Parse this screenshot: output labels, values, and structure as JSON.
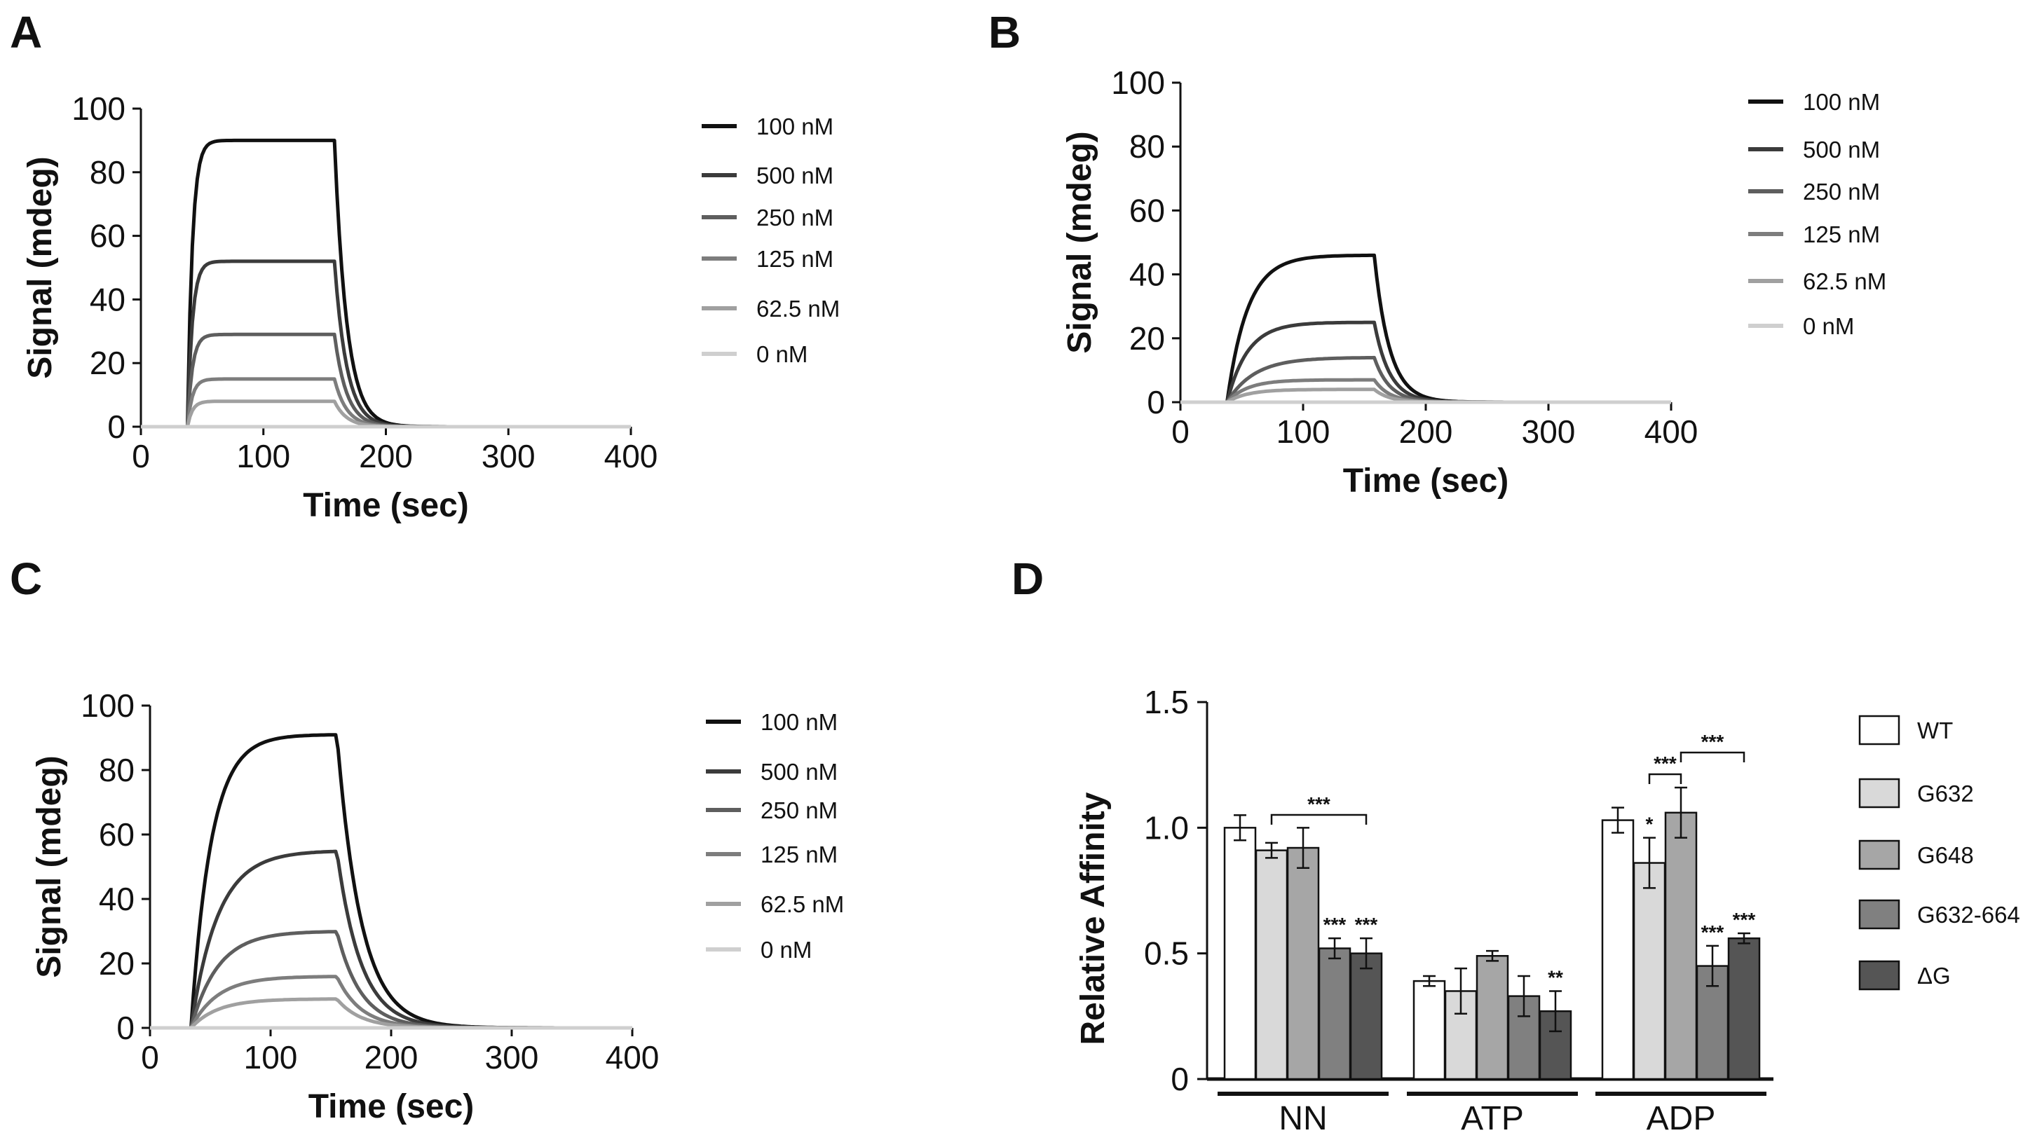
{
  "chart_data": [
    {
      "panel": "A",
      "type": "line",
      "xlabel": "Time (sec)",
      "ylabel": "Signal  (mdeg)",
      "xlim": [
        0,
        400
      ],
      "ylim": [
        0,
        100
      ],
      "xticks": [
        "0",
        "100",
        "200",
        "300",
        "400"
      ],
      "yticks": [
        "0",
        "20",
        "40",
        "60",
        "80",
        "100"
      ],
      "legend_position": "right",
      "association_start": 38,
      "dissociation_start": 158,
      "series": [
        {
          "name": "100 nM",
          "plateau": 90,
          "color": "#111111",
          "k_on": 0.25,
          "k_off": 0.1
        },
        {
          "name": "500 nM",
          "plateau": 52,
          "color": "#3b3b3b",
          "k_on": 0.25,
          "k_off": 0.1
        },
        {
          "name": "250 nM",
          "plateau": 29,
          "color": "#5e5e5e",
          "k_on": 0.25,
          "k_off": 0.1
        },
        {
          "name": "125 nM",
          "plateau": 15,
          "color": "#7d7d7d",
          "k_on": 0.25,
          "k_off": 0.1
        },
        {
          "name": "62.5 nM",
          "plateau": 8,
          "color": "#a0a0a0",
          "k_on": 0.25,
          "k_off": 0.1
        },
        {
          "name": "0 nM",
          "plateau": 0,
          "color": "#cfcfcf",
          "k_on": 0.25,
          "k_off": 0.1
        }
      ]
    },
    {
      "panel": "B",
      "type": "line",
      "xlabel": "Time (sec)",
      "ylabel": "Signal  (mdeg)",
      "xlim": [
        0,
        400
      ],
      "ylim": [
        0,
        100
      ],
      "xticks": [
        "0",
        "100",
        "200",
        "300",
        "400"
      ],
      "yticks": [
        "0",
        "20",
        "40",
        "60",
        "80",
        "100"
      ],
      "legend_position": "right",
      "association_start": 38,
      "dissociation_start": 158,
      "series": [
        {
          "name": "100 nM",
          "plateau": 46,
          "color": "#111111",
          "k_on": 0.06,
          "k_off": 0.08
        },
        {
          "name": "500 nM",
          "plateau": 25,
          "color": "#3b3b3b",
          "k_on": 0.06,
          "k_off": 0.08
        },
        {
          "name": "250 nM",
          "plateau": 14,
          "color": "#5e5e5e",
          "k_on": 0.045,
          "k_off": 0.08
        },
        {
          "name": "125 nM",
          "plateau": 7,
          "color": "#7d7d7d",
          "k_on": 0.06,
          "k_off": 0.08
        },
        {
          "name": "62.5 nM",
          "plateau": 4,
          "color": "#a0a0a0",
          "k_on": 0.06,
          "k_off": 0.08
        },
        {
          "name": "0 nM",
          "plateau": 0,
          "color": "#cfcfcf",
          "k_on": 0.06,
          "k_off": 0.08
        }
      ]
    },
    {
      "panel": "C",
      "type": "line",
      "xlabel": "Time (sec)",
      "ylabel": "Signal  (mdeg)",
      "xlim": [
        0,
        400
      ],
      "ylim": [
        0,
        100
      ],
      "xticks": [
        "0",
        "100",
        "200",
        "300",
        "400"
      ],
      "yticks": [
        "0",
        "20",
        "40",
        "60",
        "80",
        "100"
      ],
      "legend_position": "right",
      "association_start": 34,
      "dissociation_start": 155,
      "series": [
        {
          "name": "100 nM",
          "plateau": 91,
          "color": "#111111",
          "k_on": 0.06,
          "k_off": 0.05
        },
        {
          "name": "500 nM",
          "plateau": 55,
          "color": "#3b3b3b",
          "k_on": 0.045,
          "k_off": 0.05
        },
        {
          "name": "250 nM",
          "plateau": 30,
          "color": "#5e5e5e",
          "k_on": 0.045,
          "k_off": 0.05
        },
        {
          "name": "125 nM",
          "plateau": 16,
          "color": "#7d7d7d",
          "k_on": 0.045,
          "k_off": 0.05
        },
        {
          "name": "62.5 nM",
          "plateau": 9,
          "color": "#a0a0a0",
          "k_on": 0.045,
          "k_off": 0.05
        },
        {
          "name": "0 nM",
          "plateau": 0,
          "color": "#cfcfcf",
          "k_on": 0.045,
          "k_off": 0.05
        }
      ]
    },
    {
      "panel": "D",
      "type": "bar",
      "ylabel": "Relative Affinity",
      "ylim": [
        0,
        1.5
      ],
      "yticks": [
        "0",
        "0.5",
        "1.0",
        "1.5"
      ],
      "categories": [
        "NN",
        "ATP",
        "ADP"
      ],
      "legend_position": "right",
      "series": [
        {
          "name": "WT",
          "color": "#ffffff",
          "values": [
            1.0,
            0.39,
            1.03
          ],
          "errors": [
            0.05,
            0.02,
            0.05
          ]
        },
        {
          "name": "G632",
          "color": "#d9d9d9",
          "values": [
            0.91,
            0.35,
            0.86
          ],
          "errors": [
            0.03,
            0.09,
            0.1
          ]
        },
        {
          "name": "G648",
          "color": "#a6a6a6",
          "values": [
            0.92,
            0.49,
            1.06
          ],
          "errors": [
            0.08,
            0.02,
            0.1
          ]
        },
        {
          "name": "G632-664",
          "color": "#808080",
          "values": [
            0.52,
            0.33,
            0.45
          ],
          "errors": [
            0.04,
            0.08,
            0.08
          ]
        },
        {
          "name": "ΔG",
          "color": "#555555",
          "values": [
            0.5,
            0.27,
            0.56
          ],
          "errors": [
            0.06,
            0.08,
            0.02
          ]
        }
      ],
      "bar_significance": [
        [
          "",
          "",
          "",
          "***",
          "***"
        ],
        [
          "",
          "",
          "",
          "",
          "**"
        ],
        [
          "",
          "*",
          "",
          "***",
          "***"
        ]
      ],
      "brackets": [
        {
          "category": "NN",
          "from_series": "G632",
          "to_series": "ΔG",
          "label": "***"
        },
        {
          "category": "ADP",
          "from_series": "G632",
          "to_series": "G648",
          "label": "***"
        },
        {
          "category": "ADP",
          "from_series": "G648",
          "to_series": "ΔG",
          "label": "***"
        }
      ]
    }
  ]
}
